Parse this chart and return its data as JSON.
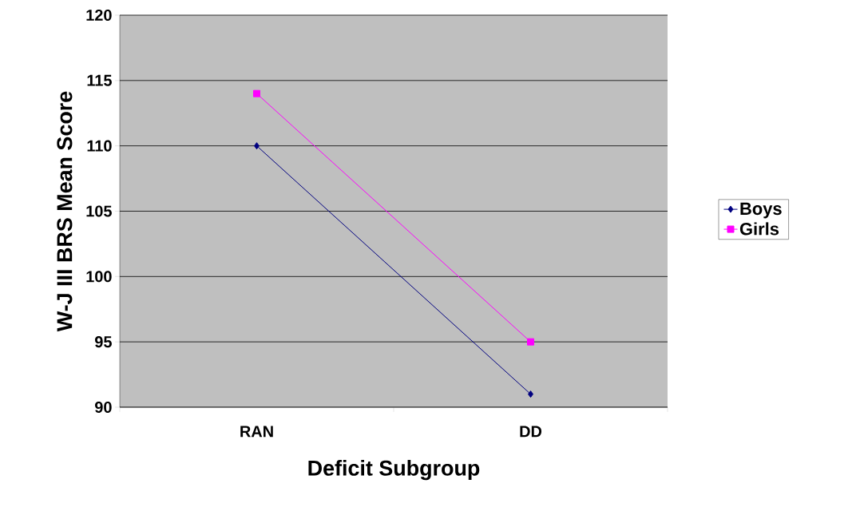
{
  "chart_data": {
    "type": "line",
    "xlabel": "Deficit Subgroup",
    "ylabel": "W-J III BRS Mean Score",
    "categories": [
      "RAN",
      "DD"
    ],
    "series": [
      {
        "name": "Boys",
        "color": "#000080",
        "marker": "diamond",
        "values": [
          110,
          91
        ]
      },
      {
        "name": "Girls",
        "color": "#ff00ff",
        "marker": "square",
        "values": [
          114,
          95
        ]
      }
    ],
    "ylim": [
      90,
      120
    ],
    "yticks": [
      90,
      95,
      100,
      105,
      110,
      115,
      120
    ],
    "grid": "y",
    "legend": "right"
  }
}
